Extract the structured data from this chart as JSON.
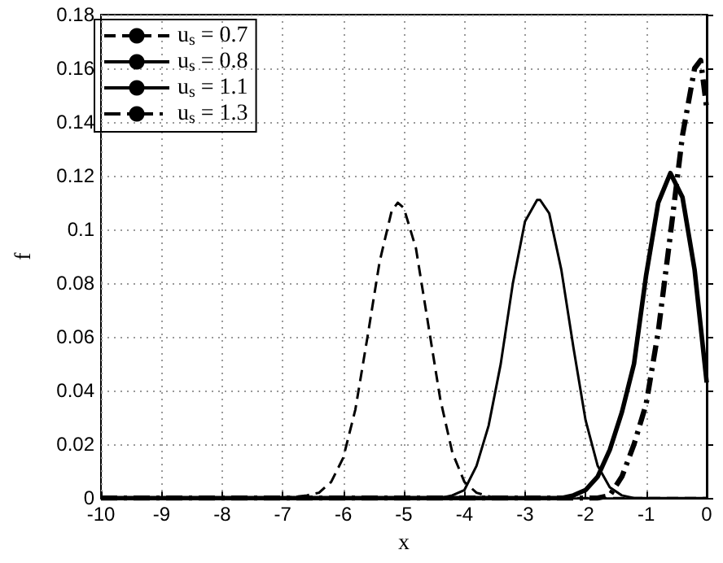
{
  "chart_data": {
    "type": "line",
    "xlabel": "x",
    "ylabel": "f",
    "xlim": [
      -10,
      0
    ],
    "ylim": [
      0,
      0.18
    ],
    "xticks": [
      -10,
      -9,
      -8,
      -7,
      -6,
      -5,
      -4,
      -3,
      -2,
      -1,
      0
    ],
    "yticks": [
      0,
      0.02,
      0.04,
      0.06,
      0.08,
      0.1,
      0.12,
      0.14,
      0.16,
      0.18
    ],
    "grid": true,
    "legend": "top left",
    "marker": "none",
    "series": [
      {
        "name": "u$_{s}$ = 0.7",
        "color": "#000000",
        "line_style": "dashed",
        "x": [
          -10,
          -7,
          -6.6,
          -6.4,
          -6.2,
          -6.0,
          -5.8,
          -5.6,
          -5.4,
          -5.2,
          -5.1,
          -5.0,
          -4.8,
          -4.6,
          -4.4,
          -4.2,
          -4.0,
          -3.8,
          -3.5,
          0
        ],
        "values": [
          0,
          0,
          0.001,
          0.002,
          0.006,
          0.015,
          0.033,
          0.06,
          0.088,
          0.107,
          0.11,
          0.108,
          0.093,
          0.065,
          0.037,
          0.017,
          0.006,
          0.002,
          0,
          0
        ]
      },
      {
        "name": "u$_{s}$ = 0.8",
        "color": "#000000",
        "line_style": "solid",
        "x": [
          -10,
          -4.4,
          -4.2,
          -4.0,
          -3.8,
          -3.6,
          -3.4,
          -3.2,
          -3.0,
          -2.8,
          -2.75,
          -2.6,
          -2.4,
          -2.2,
          -2.0,
          -1.8,
          -1.6,
          -1.4,
          -1.2,
          0
        ],
        "values": [
          0,
          0,
          0.001,
          0.003,
          0.012,
          0.027,
          0.05,
          0.08,
          0.103,
          0.111,
          0.111,
          0.106,
          0.085,
          0.056,
          0.029,
          0.012,
          0.004,
          0.001,
          0,
          0
        ]
      },
      {
        "name": "u$_{s}$ = 1.1",
        "color": "#000000",
        "line_style": "solid",
        "x": [
          -10,
          -2.4,
          -2.2,
          -2.0,
          -1.8,
          -1.6,
          -1.4,
          -1.2,
          -1.0,
          -0.8,
          -0.6,
          -0.4,
          -0.2,
          0
        ],
        "values": [
          0,
          0,
          0.001,
          0.003,
          0.008,
          0.018,
          0.032,
          0.05,
          0.083,
          0.11,
          0.121,
          0.112,
          0.085,
          0.043
        ]
      },
      {
        "name": "u$_{s}$ = 1.3",
        "color": "#000000",
        "line_style": "dashdot",
        "x": [
          -10,
          -1.8,
          -1.6,
          -1.4,
          -1.2,
          -1.0,
          -0.8,
          -0.6,
          -0.4,
          -0.2,
          -0.1,
          0
        ],
        "values": [
          0,
          0,
          0.001,
          0.008,
          0.02,
          0.035,
          0.062,
          0.098,
          0.135,
          0.16,
          0.163,
          0.145
        ]
      }
    ]
  }
}
